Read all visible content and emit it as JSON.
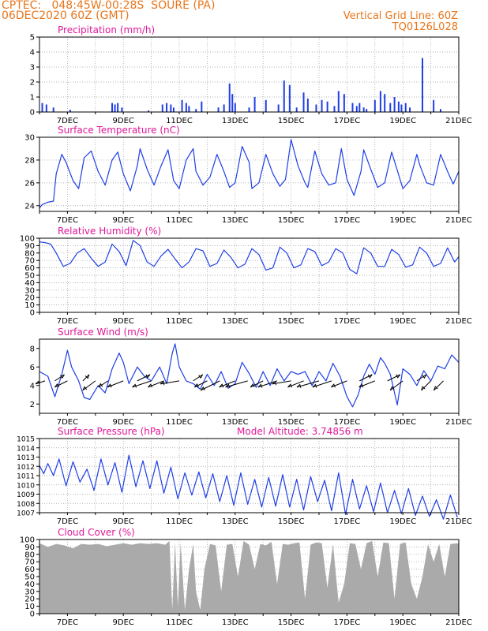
{
  "header": {
    "center": "CPTEC:",
    "location": "048:45W-00:28S  SOURE (PA)",
    "run": "06DEC2020 60Z (GMT)",
    "grid_note": "Vertical Grid Line: 60Z",
    "code": "TQ0126L028"
  },
  "colors": {
    "header": "#e8761c",
    "titles": "#e0189a",
    "series": "#1f3fe6",
    "cloud": "#aaaaaa",
    "arrows": "#000000"
  },
  "chart_data": [
    {
      "id": "precip",
      "type": "bar",
      "title": "Precipitation (mm/h)",
      "x_range": [
        6,
        21
      ],
      "ylim": [
        0,
        5
      ],
      "yticks": [
        0,
        1,
        2,
        3,
        4,
        5
      ],
      "xticks": [
        "7DEC",
        "9DEC",
        "11DEC",
        "13DEC",
        "15DEC",
        "17DEC",
        "19DEC",
        "21DEC"
      ],
      "grid": true,
      "series": [
        {
          "x": [
            6.1,
            6.25,
            6.5,
            7.1,
            8.6,
            8.7,
            8.8,
            8.95,
            9.9,
            10.4,
            10.55,
            10.7,
            10.8,
            11.1,
            11.25,
            11.35,
            11.6,
            11.8,
            12.4,
            12.6,
            12.8,
            12.9,
            13.0,
            13.5,
            13.7,
            14.1,
            14.55,
            14.75,
            14.95,
            15.2,
            15.45,
            15.6,
            15.9,
            16.1,
            16.3,
            16.55,
            16.7,
            16.9,
            17.2,
            17.35,
            17.45,
            17.6,
            17.7,
            18.0,
            18.2,
            18.35,
            18.55,
            18.7,
            18.85,
            18.95,
            19.1,
            19.25,
            19.7,
            20.1,
            20.35
          ],
          "values": [
            0.6,
            0.5,
            0.3,
            0.15,
            0.6,
            0.5,
            0.6,
            0.3,
            0.1,
            0.5,
            0.6,
            0.5,
            0.3,
            0.8,
            0.6,
            0.4,
            0.2,
            0.7,
            0.3,
            0.5,
            1.9,
            1.2,
            0.6,
            0.3,
            1.0,
            0.8,
            0.5,
            2.1,
            1.8,
            0.3,
            1.3,
            0.9,
            0.5,
            0.8,
            0.7,
            0.4,
            1.4,
            1.2,
            0.6,
            0.4,
            0.6,
            0.3,
            0.2,
            0.8,
            1.4,
            1.2,
            0.6,
            1.0,
            0.7,
            0.5,
            0.6,
            0.3,
            3.6,
            0.8,
            0.2
          ]
        }
      ]
    },
    {
      "id": "temp",
      "type": "line",
      "title": "Surface Temperature (nC)",
      "x_range": [
        6,
        21
      ],
      "ylim": [
        23.5,
        30
      ],
      "yticks": [
        24,
        26,
        28,
        30
      ],
      "xticks": [
        "7DEC",
        "9DEC",
        "11DEC",
        "13DEC",
        "15DEC",
        "17DEC",
        "19DEC",
        "21DEC"
      ],
      "grid": true,
      "series": [
        {
          "x": [
            6.0,
            6.1,
            6.3,
            6.5,
            6.6,
            6.8,
            6.95,
            7.2,
            7.4,
            7.6,
            7.85,
            8.1,
            8.35,
            8.6,
            8.8,
            9.0,
            9.25,
            9.5,
            9.6,
            9.85,
            10.1,
            10.35,
            10.6,
            10.8,
            11.0,
            11.25,
            11.5,
            11.6,
            11.85,
            12.1,
            12.35,
            12.6,
            12.8,
            13.0,
            13.25,
            13.5,
            13.6,
            13.85,
            14.1,
            14.35,
            14.6,
            14.8,
            15.0,
            15.25,
            15.5,
            15.6,
            15.85,
            16.1,
            16.35,
            16.6,
            16.8,
            17.0,
            17.25,
            17.5,
            17.6,
            17.85,
            18.1,
            18.35,
            18.6,
            18.8,
            19.0,
            19.25,
            19.5,
            19.6,
            19.85,
            20.1,
            20.35,
            20.6,
            20.8,
            21.0
          ],
          "values": [
            23.8,
            24.1,
            24.3,
            24.4,
            26.8,
            28.5,
            27.8,
            26.2,
            25.5,
            28.2,
            28.8,
            27.0,
            25.8,
            28.0,
            28.7,
            26.8,
            25.3,
            27.5,
            29.0,
            27.2,
            25.8,
            27.5,
            28.9,
            26.2,
            25.5,
            28.0,
            29.0,
            27.0,
            25.8,
            26.5,
            28.5,
            27.0,
            25.6,
            26.0,
            29.2,
            27.8,
            25.5,
            26.0,
            28.5,
            26.8,
            25.7,
            26.3,
            29.8,
            27.5,
            26.0,
            25.6,
            28.8,
            26.8,
            25.8,
            26.0,
            29.0,
            26.3,
            24.9,
            27.0,
            28.9,
            27.2,
            25.6,
            26.0,
            28.7,
            27.1,
            25.5,
            26.2,
            28.5,
            27.6,
            26.0,
            25.8,
            28.5,
            27.0,
            25.9,
            27.0
          ]
        }
      ]
    },
    {
      "id": "rh",
      "type": "line",
      "title": "Relative Humidity (%)",
      "x_range": [
        6,
        21
      ],
      "ylim": [
        0,
        100
      ],
      "yticks": [
        0,
        10,
        20,
        30,
        40,
        50,
        60,
        70,
        80,
        90,
        100
      ],
      "xticks": [
        "7DEC",
        "9DEC",
        "11DEC",
        "13DEC",
        "15DEC",
        "17DEC",
        "19DEC",
        "21DEC"
      ],
      "grid": true,
      "series": [
        {
          "x": [
            6.0,
            6.2,
            6.4,
            6.6,
            6.85,
            7.1,
            7.35,
            7.6,
            7.85,
            8.1,
            8.35,
            8.6,
            8.85,
            9.1,
            9.35,
            9.6,
            9.85,
            10.1,
            10.35,
            10.6,
            10.85,
            11.1,
            11.35,
            11.6,
            11.85,
            12.1,
            12.35,
            12.6,
            12.85,
            13.1,
            13.35,
            13.6,
            13.85,
            14.1,
            14.35,
            14.6,
            14.85,
            15.1,
            15.35,
            15.6,
            15.85,
            16.1,
            16.35,
            16.6,
            16.85,
            17.1,
            17.35,
            17.6,
            17.85,
            18.1,
            18.35,
            18.6,
            18.85,
            19.1,
            19.35,
            19.6,
            19.85,
            20.1,
            20.35,
            20.6,
            20.85,
            21.0
          ],
          "values": [
            95,
            94,
            92,
            80,
            62,
            66,
            80,
            86,
            73,
            62,
            68,
            92,
            82,
            63,
            97,
            90,
            68,
            62,
            76,
            85,
            72,
            60,
            68,
            86,
            83,
            62,
            66,
            84,
            74,
            60,
            65,
            86,
            78,
            57,
            60,
            88,
            80,
            60,
            64,
            86,
            82,
            63,
            68,
            86,
            80,
            58,
            52,
            87,
            80,
            62,
            62,
            85,
            78,
            61,
            64,
            88,
            80,
            62,
            66,
            87,
            68,
            75
          ]
        }
      ]
    },
    {
      "id": "wind",
      "type": "line",
      "title": "Surface Wind (m/s)",
      "x_range": [
        6,
        21
      ],
      "ylim": [
        1,
        9
      ],
      "yticks": [
        2,
        4,
        6,
        8
      ],
      "xticks": [
        "7DEC",
        "9DEC",
        "11DEC",
        "13DEC",
        "15DEC",
        "17DEC",
        "19DEC",
        "21DEC"
      ],
      "grid": false,
      "series": [
        {
          "x": [
            6.0,
            6.3,
            6.55,
            6.8,
            7.0,
            7.15,
            7.4,
            7.6,
            7.8,
            8.1,
            8.35,
            8.6,
            8.85,
            9.0,
            9.2,
            9.5,
            9.75,
            10.0,
            10.3,
            10.55,
            10.75,
            10.85,
            11.0,
            11.25,
            11.5,
            11.75,
            12.0,
            12.25,
            12.5,
            12.75,
            13.0,
            13.25,
            13.5,
            13.75,
            14.0,
            14.25,
            14.5,
            14.75,
            15.0,
            15.25,
            15.5,
            15.75,
            16.0,
            16.25,
            16.5,
            16.75,
            17.0,
            17.2,
            17.4,
            17.6,
            17.8,
            18.0,
            18.2,
            18.35,
            18.55,
            18.8,
            19.0,
            19.25,
            19.5,
            19.75,
            20.0,
            20.25,
            20.5,
            20.75,
            21.0
          ],
          "values": [
            5.5,
            5.0,
            2.8,
            5.2,
            7.8,
            6.0,
            4.5,
            2.7,
            2.5,
            4.0,
            3.2,
            5.8,
            7.5,
            6.5,
            4.2,
            6.0,
            5.0,
            4.5,
            6.0,
            4.2,
            7.5,
            8.5,
            6.0,
            4.5,
            4.2,
            3.6,
            5.2,
            4.0,
            5.5,
            3.7,
            4.2,
            6.5,
            5.3,
            3.8,
            5.5,
            4.0,
            5.8,
            4.5,
            5.5,
            5.2,
            5.5,
            4.0,
            5.5,
            4.5,
            6.4,
            5.0,
            2.8,
            1.7,
            3.0,
            5.0,
            6.3,
            5.2,
            7.0,
            6.4,
            5.2,
            1.9,
            5.8,
            5.2,
            4.0,
            5.6,
            4.5,
            6.1,
            5.8,
            7.3,
            6.5
          ]
        }
      ],
      "wind_vectors": {
        "x": [
          6.2,
          6.55,
          7.0,
          7.55,
          8.0,
          8.45,
          9.0,
          9.5,
          10.0,
          10.45,
          11.0,
          11.5,
          12.0,
          12.45,
          13.0,
          13.45,
          14.0,
          14.5,
          15.0,
          15.45,
          16.0,
          16.45,
          17.0,
          17.45,
          18.0,
          18.45,
          19.0,
          19.5,
          20.0,
          20.45
        ],
        "u": [
          -3,
          3,
          -4,
          2,
          -4,
          -3,
          -5,
          4,
          -6,
          -5,
          -6,
          3,
          -4,
          -6,
          -5,
          -7,
          -4,
          -6,
          -6,
          -5,
          -7,
          -6,
          -5,
          4,
          -5,
          4,
          -4,
          3,
          -3,
          -3
        ],
        "v": [
          -1,
          2,
          -2,
          2,
          -3,
          -2,
          -2,
          2,
          -2,
          -2,
          -1,
          2,
          -2,
          -3,
          -2,
          -2,
          -2,
          -2,
          -1,
          -2,
          -2,
          -2,
          -2,
          2,
          -2,
          2,
          -3,
          2,
          -3,
          -3
        ]
      }
    },
    {
      "id": "pressure",
      "type": "line",
      "title": "Surface Pressure (hPa)",
      "annotation": "Model Altitude: 3.74856 m",
      "x_range": [
        6,
        21
      ],
      "ylim": [
        1007,
        1015
      ],
      "yticks": [
        1007,
        1008,
        1009,
        1010,
        1011,
        1012,
        1013,
        1014,
        1015
      ],
      "xticks": [
        "7DEC",
        "9DEC",
        "11DEC",
        "13DEC",
        "15DEC",
        "17DEC",
        "19DEC",
        "21DEC"
      ],
      "grid": true,
      "series": [
        {
          "x": [
            6.0,
            6.15,
            6.3,
            6.5,
            6.7,
            6.95,
            7.2,
            7.45,
            7.7,
            7.95,
            8.2,
            8.45,
            8.7,
            8.95,
            9.2,
            9.45,
            9.7,
            9.95,
            10.2,
            10.45,
            10.7,
            10.95,
            11.2,
            11.45,
            11.7,
            11.95,
            12.2,
            12.45,
            12.7,
            12.95,
            13.2,
            13.45,
            13.7,
            13.95,
            14.2,
            14.45,
            14.7,
            14.95,
            15.2,
            15.45,
            15.7,
            15.95,
            16.2,
            16.45,
            16.7,
            16.95,
            17.2,
            17.45,
            17.7,
            17.95,
            18.2,
            18.45,
            18.7,
            18.95,
            19.2,
            19.45,
            19.7,
            19.95,
            20.2,
            20.45,
            20.7,
            20.95
          ],
          "values": [
            1012.1,
            1011.2,
            1012.3,
            1011.0,
            1012.8,
            1009.9,
            1012.5,
            1010.3,
            1011.7,
            1009.4,
            1012.8,
            1010.0,
            1012.4,
            1009.2,
            1013.2,
            1009.8,
            1012.6,
            1009.6,
            1012.6,
            1009.1,
            1011.9,
            1008.5,
            1011.3,
            1008.9,
            1011.4,
            1008.6,
            1011.2,
            1008.2,
            1011.0,
            1007.8,
            1011.3,
            1007.9,
            1010.6,
            1007.6,
            1010.8,
            1007.7,
            1011.1,
            1007.6,
            1010.6,
            1007.3,
            1010.9,
            1008.2,
            1010.5,
            1007.2,
            1011.3,
            1006.8,
            1010.6,
            1007.4,
            1009.9,
            1007.1,
            1010.2,
            1007.0,
            1009.4,
            1006.9,
            1009.6,
            1006.7,
            1008.8,
            1006.6,
            1008.4,
            1006.3,
            1008.9,
            1006.5
          ]
        }
      ]
    },
    {
      "id": "cloud",
      "type": "area",
      "title": "Cloud Cover (%)",
      "x_range": [
        6,
        21
      ],
      "ylim": [
        0,
        100
      ],
      "yticks": [
        0,
        10,
        20,
        30,
        40,
        50,
        60,
        70,
        80,
        90,
        100
      ],
      "xticks": [
        "7DEC",
        "9DEC",
        "11DEC",
        "13DEC",
        "15DEC",
        "17DEC",
        "19DEC",
        "21DEC"
      ],
      "grid": true,
      "series": [
        {
          "x": [
            6.0,
            6.3,
            6.6,
            6.9,
            7.2,
            7.5,
            7.8,
            8.1,
            8.4,
            8.7,
            9.0,
            9.3,
            9.6,
            9.9,
            10.2,
            10.5,
            10.65,
            10.75,
            10.85,
            10.95,
            11.05,
            11.2,
            11.35,
            11.5,
            11.6,
            11.75,
            11.9,
            12.1,
            12.3,
            12.5,
            12.7,
            12.9,
            13.1,
            13.3,
            13.5,
            13.7,
            13.9,
            14.1,
            14.3,
            14.5,
            14.7,
            14.9,
            15.1,
            15.3,
            15.5,
            15.7,
            15.9,
            16.1,
            16.3,
            16.5,
            16.7,
            16.9,
            17.1,
            17.3,
            17.5,
            17.7,
            17.9,
            18.1,
            18.3,
            18.5,
            18.7,
            18.9,
            19.1,
            19.3,
            19.5,
            19.7,
            19.9,
            20.1,
            20.3,
            20.5,
            20.7,
            21.0
          ],
          "values": [
            95,
            90,
            94,
            92,
            88,
            94,
            93,
            94,
            91,
            93,
            95,
            93,
            95,
            94,
            95,
            93,
            98,
            5,
            97,
            10,
            96,
            5,
            60,
            94,
            30,
            5,
            60,
            94,
            92,
            30,
            93,
            94,
            50,
            98,
            93,
            60,
            94,
            92,
            97,
            40,
            94,
            93,
            95,
            96,
            20,
            93,
            96,
            95,
            35,
            94,
            15,
            40,
            95,
            94,
            60,
            95,
            98,
            50,
            96,
            95,
            20,
            94,
            96,
            40,
            20,
            50,
            94,
            70,
            94,
            50,
            94,
            95
          ]
        }
      ]
    }
  ]
}
